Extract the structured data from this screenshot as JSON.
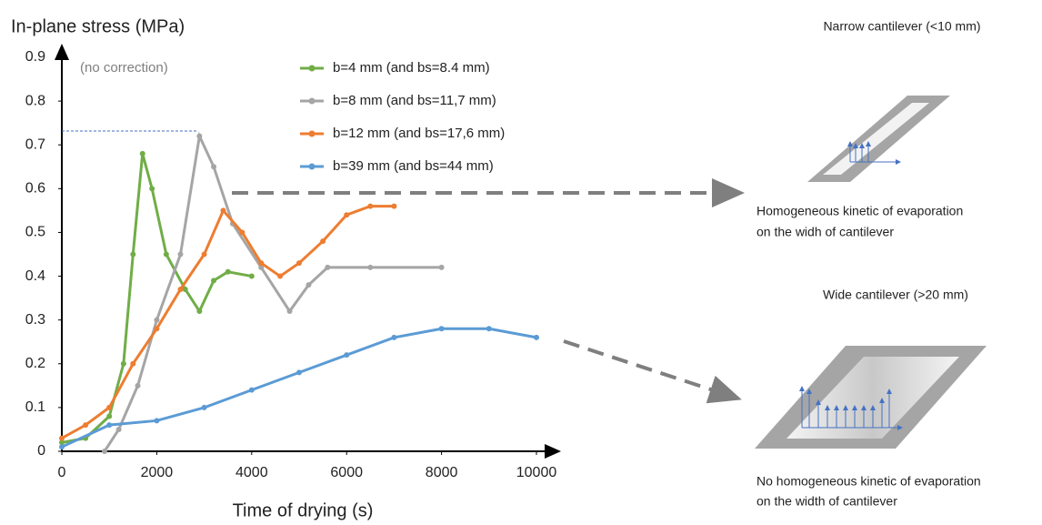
{
  "chart_data": {
    "type": "line",
    "y_label": "In-plane stress (MPa)",
    "x_label": "Time of drying (s)",
    "xlim": [
      0,
      10000
    ],
    "xticks": [
      0,
      2000,
      4000,
      6000,
      8000,
      10000
    ],
    "ylim": [
      0,
      0.9
    ],
    "yticks": [
      0,
      0.1,
      0.2,
      0.3,
      0.4,
      0.5,
      0.6,
      0.7,
      0.8,
      0.9
    ],
    "series": [
      {
        "name": "b=4 mm (and bs=8.4 mm)",
        "color": "#70ad47",
        "x": [
          0,
          500,
          1000,
          1300,
          1500,
          1700,
          1900,
          2200,
          2600,
          2900,
          3200,
          3500,
          4000
        ],
        "values": [
          0.02,
          0.03,
          0.08,
          0.2,
          0.45,
          0.68,
          0.6,
          0.45,
          0.37,
          0.32,
          0.39,
          0.41,
          0.4
        ]
      },
      {
        "name": "b=8 mm (and bs=11,7 mm)",
        "color": "#a5a5a5",
        "x": [
          900,
          1200,
          1600,
          2000,
          2500,
          2900,
          3200,
          3600,
          4200,
          4800,
          5200,
          5600,
          6500,
          8000
        ],
        "values": [
          0.0,
          0.05,
          0.15,
          0.3,
          0.45,
          0.72,
          0.65,
          0.52,
          0.42,
          0.32,
          0.38,
          0.42,
          0.42,
          0.42
        ]
      },
      {
        "name": "b=12 mm (and bs=17,6 mm)",
        "color": "#ed7d31",
        "x": [
          0,
          500,
          1000,
          1500,
          2000,
          2500,
          3000,
          3400,
          3800,
          4200,
          4600,
          5000,
          5500,
          6000,
          6500,
          7000
        ],
        "values": [
          0.03,
          0.06,
          0.1,
          0.2,
          0.28,
          0.37,
          0.45,
          0.55,
          0.5,
          0.43,
          0.4,
          0.43,
          0.48,
          0.54,
          0.56,
          0.56
        ]
      },
      {
        "name": "b=39 mm (and bs=44 mm)",
        "color": "#5b9bd5",
        "x": [
          0,
          1000,
          2000,
          3000,
          4000,
          5000,
          6000,
          7000,
          8000,
          9000,
          10000
        ],
        "values": [
          0.01,
          0.06,
          0.07,
          0.1,
          0.14,
          0.18,
          0.22,
          0.26,
          0.28,
          0.28,
          0.26
        ]
      }
    ],
    "annotations": [
      "(no correction)",
      "Narrow cantilever (<10 mm)",
      "Homogeneous kinetic of evaporation",
      "on the widh of cantilever",
      "Wide cantilever (>20 mm)",
      "No homogeneous kinetic of evaporation",
      "on the width of cantilever"
    ]
  }
}
